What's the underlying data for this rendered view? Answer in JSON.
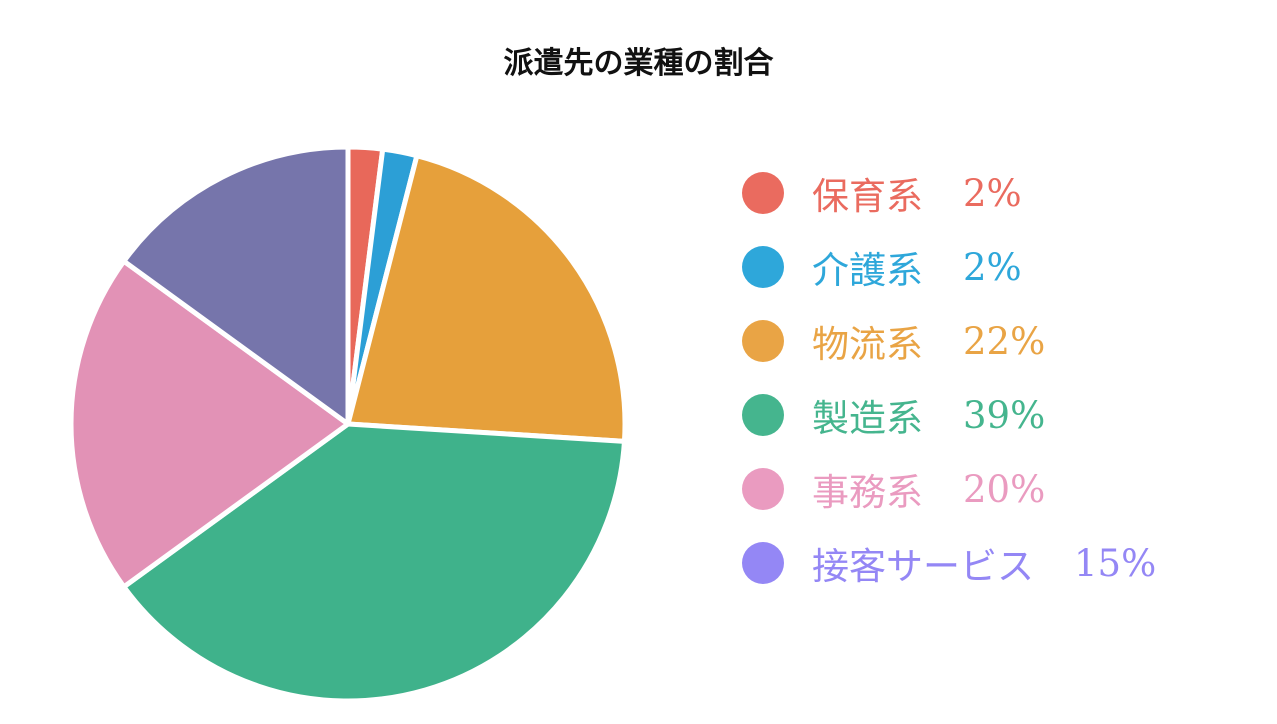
{
  "chart_data": {
    "type": "pie",
    "title": "派遣先の業種の割合",
    "start_angle_deg": 0,
    "direction": "clockwise",
    "legend_position": "right",
    "slices": [
      {
        "label": "保育系",
        "value": 2,
        "value_label": "2%",
        "color": "#E8685A",
        "legend_color": "#EA6B5F"
      },
      {
        "label": "介護系",
        "value": 2,
        "value_label": "2%",
        "color": "#2C9FD6",
        "legend_color": "#2EA7DA"
      },
      {
        "label": "物流系",
        "value": 22,
        "value_label": "22%",
        "color": "#E6A03B",
        "legend_color": "#E9A445"
      },
      {
        "label": "製造系",
        "value": 39,
        "value_label": "39%",
        "color": "#3FB28B",
        "legend_color": "#45B58E"
      },
      {
        "label": "事務系",
        "value": 20,
        "value_label": "20%",
        "color": "#E292B6",
        "legend_color": "#EA9BC0"
      },
      {
        "label": "接客サービス",
        "value": 15,
        "value_label": "15%",
        "color": "#7675AB",
        "legend_color": "#9487F5"
      }
    ]
  }
}
